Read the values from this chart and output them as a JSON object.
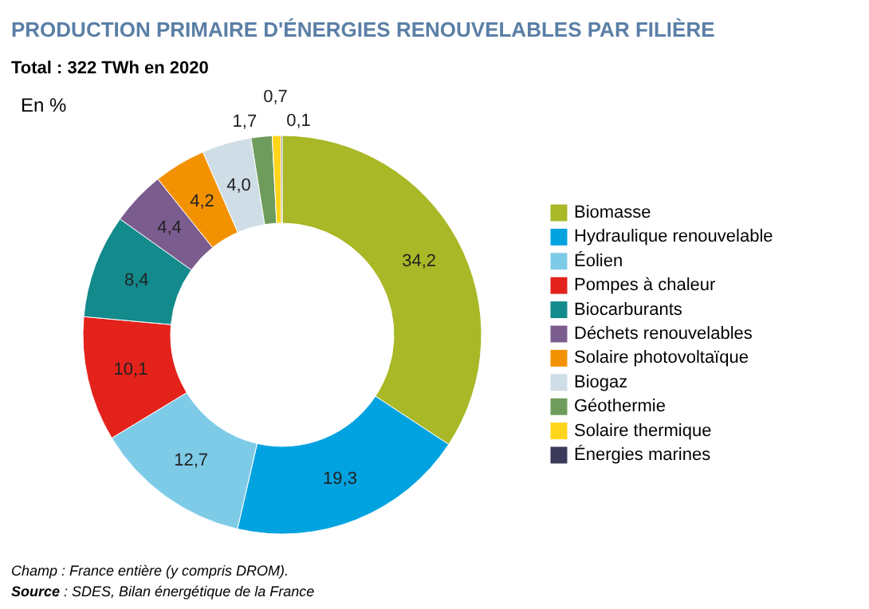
{
  "chart_data": {
    "type": "donut",
    "title": "PRODUCTION PRIMAIRE D'ÉNERGIES RENOUVELABLES PAR FILIÈRE",
    "subtitle": "Total : 322 TWh en 2020",
    "ylabel": "En %",
    "categories": [
      "Biomasse",
      "Hydraulique renouvelable",
      "Éolien",
      "Pompes à chaleur",
      "Biocarburants",
      "Déchets renouvelables",
      "Solaire photovoltaïque",
      "Biogaz",
      "Géothermie",
      "Solaire thermique",
      "Énergies marines"
    ],
    "values": [
      34.2,
      19.3,
      12.7,
      10.1,
      8.4,
      4.4,
      4.2,
      4.0,
      1.7,
      0.7,
      0.1
    ],
    "value_labels": [
      "34,2",
      "19,3",
      "12,7",
      "10,1",
      "8,4",
      "4,4",
      "4,2",
      "4,0",
      "1,7",
      "0,7",
      "0,1"
    ],
    "colors": [
      "#a8b826",
      "#00a3e0",
      "#7ecbe8",
      "#e3221c",
      "#138a8c",
      "#7b5c8f",
      "#f39200",
      "#cfdde6",
      "#6e9c5c",
      "#ffd51c",
      "#3b3a5a"
    ],
    "legend": "right",
    "annotations": [
      "Champ : France entière (y compris DROM).",
      "$^{}$Source : SDES, Bilan énergétique de la France"
    ]
  }
}
